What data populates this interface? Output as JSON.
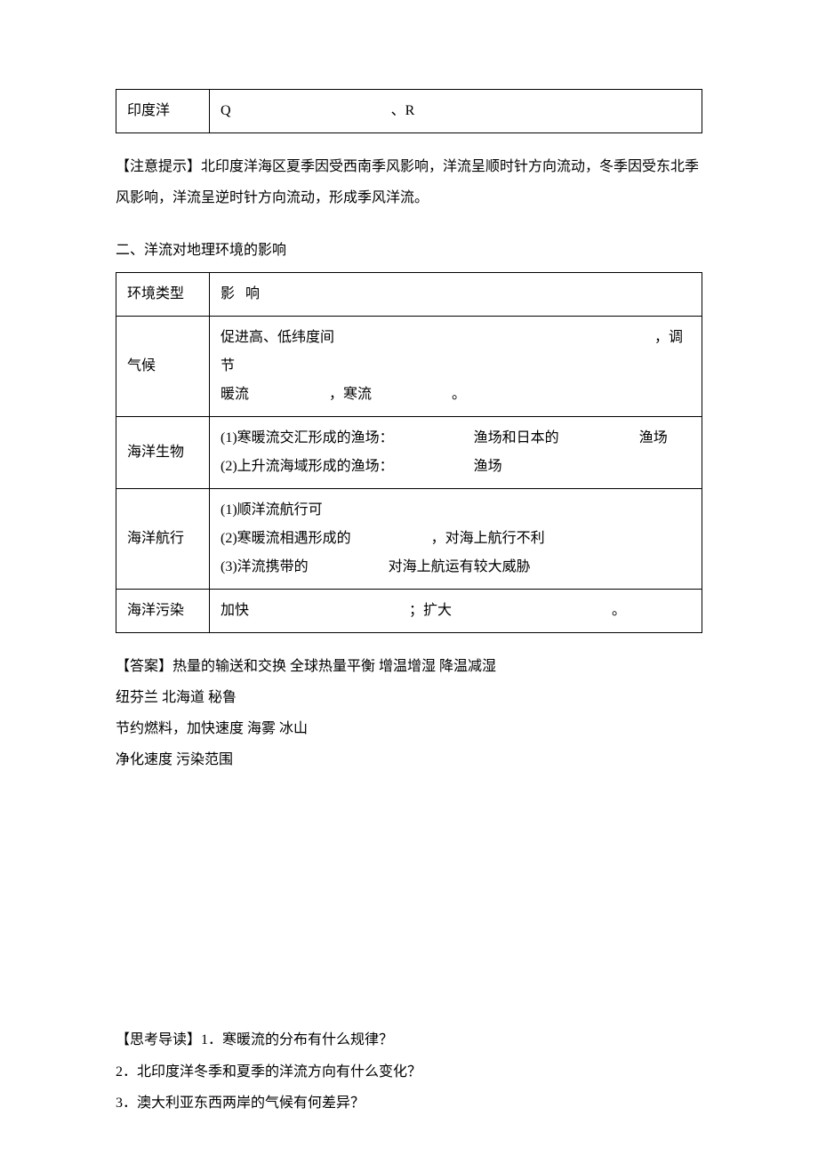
{
  "table1": {
    "row1": {
      "label": "印度洋",
      "content_prefix": "Q",
      "content_sep": "、R"
    }
  },
  "note": {
    "label": "【注意提示】",
    "text": "北印度洋海区夏季因受西南季风影响，洋流呈顺时针方向流动，冬季因受东北季风影响，洋流呈逆时针方向流动，形成季风洋流。"
  },
  "section2_heading": "二、洋流对地理环境的影响",
  "table2": {
    "header": {
      "c1": "环境类型",
      "c2_a": "影",
      "c2_b": "响"
    },
    "r1": {
      "label": "气候",
      "l1_a": "促进高、低纬度间",
      "l1_b": "，调节",
      "l2_a": "暖流",
      "l2_b": "，寒流",
      "l2_c": "。"
    },
    "r2": {
      "label": "海洋生物",
      "l1_a": "(1)寒暖流交汇形成的渔场：",
      "l1_b": "渔场和日本的",
      "l1_c": "渔场",
      "l2_a": "(2)上升流海域形成的渔场：",
      "l2_b": "渔场"
    },
    "r3": {
      "label": "海洋航行",
      "l1": "(1)顺洋流航行可",
      "l2_a": "(2)寒暖流相遇形成的",
      "l2_b": "，对海上航行不利",
      "l3_a": "(3)洋流携带的",
      "l3_b": "对海上航运有较大威胁"
    },
    "r4": {
      "label": "海洋污染",
      "c_a": "加快",
      "c_b": "；扩大",
      "c_c": "。"
    }
  },
  "answers": {
    "label": "【答案】",
    "l1": "热量的输送和交换 全球热量平衡 增温增湿 降温减湿",
    "l2": "纽芬兰 北海道 秘鲁",
    "l3": "节约燃料，加快速度 海雾 冰山",
    "l4": "净化速度 污染范围"
  },
  "questions": {
    "label": "【思考导读】",
    "q1": "1．寒暖流的分布有什么规律？",
    "q2": "2．北印度洋冬季和夏季的洋流方向有什么变化？",
    "q3": "3．澳大利亚东西两岸的气候有何差异？"
  }
}
